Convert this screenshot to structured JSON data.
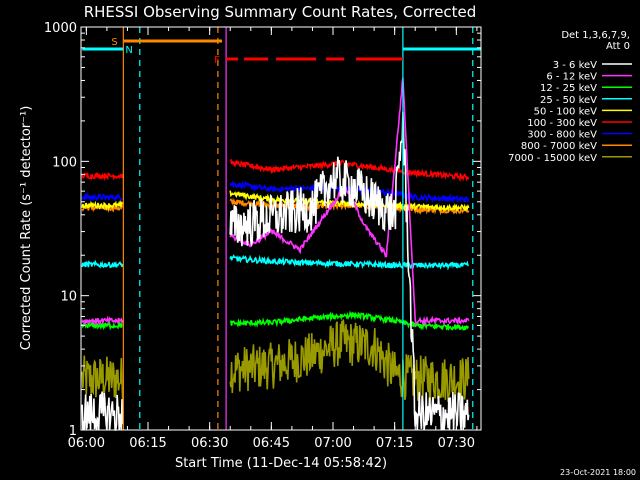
{
  "chart_data": {
    "type": "line",
    "title": "RHESSI Observing Summary Count Rates, Corrected",
    "xlabel": "Start Time (11-Dec-14 05:58:42)",
    "ylabel": "Corrected Count Rate (s⁻¹ detector⁻¹)",
    "y_scale": "log",
    "xlim": [
      "05:58:42",
      "07:36:00"
    ],
    "ylim": [
      1,
      1000
    ],
    "x_ticks": [
      "06:00",
      "06:15",
      "06:30",
      "06:45",
      "07:00",
      "07:15",
      "07:30"
    ],
    "y_ticks": [
      "1",
      "10",
      "100",
      "1000"
    ],
    "legend": {
      "placement": "right",
      "header": [
        "Det 1,3,6,7,9,",
        "Att 0"
      ]
    },
    "series": [
      {
        "name": "3 - 6 keV",
        "color": "#ffffff",
        "x": [
          "05:59",
          "06:09",
          "06:35",
          "06:45",
          "06:55",
          "07:00",
          "07:05",
          "07:10",
          "07:15",
          "07:17",
          "07:20",
          "07:33"
        ],
        "values": [
          1.3,
          1.3,
          32,
          38,
          45,
          75,
          65,
          50,
          40,
          200,
          1.3,
          1.3
        ]
      },
      {
        "name": "6 - 12 keV",
        "color": "#ff33ff",
        "x": [
          "05:59",
          "06:09",
          "06:35",
          "06:40",
          "06:45",
          "06:52",
          "06:58",
          "07:03",
          "07:08",
          "07:13",
          "07:17",
          "07:20",
          "07:33"
        ],
        "values": [
          6.5,
          6.5,
          28,
          24,
          30,
          22,
          40,
          65,
          32,
          20,
          420,
          6.5,
          6.5
        ]
      },
      {
        "name": "12 - 25 keV",
        "color": "#00ff00",
        "x": [
          "05:59",
          "06:09",
          "06:35",
          "06:45",
          "06:55",
          "07:05",
          "07:15",
          "07:20",
          "07:33"
        ],
        "values": [
          6,
          6,
          6.2,
          6.3,
          6.8,
          7.2,
          6.5,
          6,
          5.8
        ]
      },
      {
        "name": "25 - 50 keV",
        "color": "#00ffff",
        "x": [
          "05:59",
          "06:09",
          "06:35",
          "06:45",
          "06:55",
          "07:05",
          "07:15",
          "07:20",
          "07:33"
        ],
        "values": [
          17,
          17,
          19,
          18,
          17.5,
          17.2,
          16.8,
          16.8,
          16.8
        ]
      },
      {
        "name": "50 - 100 keV",
        "color": "#ffff00",
        "x": [
          "05:59",
          "06:09",
          "06:35",
          "06:45",
          "06:55",
          "07:05",
          "07:15",
          "07:20",
          "07:33"
        ],
        "values": [
          47,
          47,
          58,
          52,
          50,
          48,
          47,
          46,
          45
        ]
      },
      {
        "name": "100 - 300 keV",
        "color": "#ff0000",
        "x": [
          "05:59",
          "06:09",
          "06:35",
          "06:45",
          "06:55",
          "07:02",
          "07:10",
          "07:20",
          "07:33"
        ],
        "values": [
          78,
          78,
          98,
          87,
          92,
          97,
          90,
          82,
          76
        ]
      },
      {
        "name": "300 - 800 keV",
        "color": "#0000ff",
        "x": [
          "05:59",
          "06:09",
          "06:35",
          "06:45",
          "06:55",
          "07:05",
          "07:15",
          "07:20",
          "07:33"
        ],
        "values": [
          54,
          54,
          68,
          62,
          63,
          62,
          58,
          54,
          52
        ]
      },
      {
        "name": "800 - 7000 keV",
        "color": "#ff8800",
        "x": [
          "05:59",
          "06:09",
          "06:35",
          "06:45",
          "06:55",
          "07:05",
          "07:15",
          "07:20",
          "07:33"
        ],
        "values": [
          45,
          45,
          50,
          47,
          46,
          47,
          45,
          44,
          43
        ]
      },
      {
        "name": "7000 - 15000 keV",
        "color": "#999900",
        "x": [
          "05:59",
          "06:09",
          "06:35",
          "06:45",
          "06:55",
          "07:02",
          "07:10",
          "07:15",
          "07:20",
          "07:33"
        ],
        "values": [
          2.4,
          2.4,
          2.8,
          3.0,
          3.6,
          4.5,
          4.2,
          2.6,
          2.4,
          2.4
        ]
      }
    ],
    "annotations": [
      {
        "label": "S",
        "color": "#ff8800",
        "x_start": "06:09",
        "x_end": "06:33"
      },
      {
        "label": "N",
        "color": "#00ffff",
        "x_start": "05:59",
        "x_end": "06:09"
      },
      {
        "label": "F",
        "color": "#ff0000",
        "x_start": "06:34",
        "x_end": "07:17"
      }
    ],
    "vertical_lines": [
      {
        "x": "06:09",
        "color": "#ff8800",
        "style": "solid"
      },
      {
        "x": "06:13",
        "color": "#00ffff",
        "style": "dashed"
      },
      {
        "x": "06:32",
        "color": "#ff8800",
        "style": "dashed"
      },
      {
        "x": "06:34",
        "color": "#ff33ff",
        "style": "solid"
      },
      {
        "x": "07:17",
        "color": "#00ffff",
        "style": "solid"
      },
      {
        "x": "07:34",
        "color": "#00ffff",
        "style": "dashed"
      }
    ],
    "timestamp": "23-Oct-2021 18:00"
  }
}
